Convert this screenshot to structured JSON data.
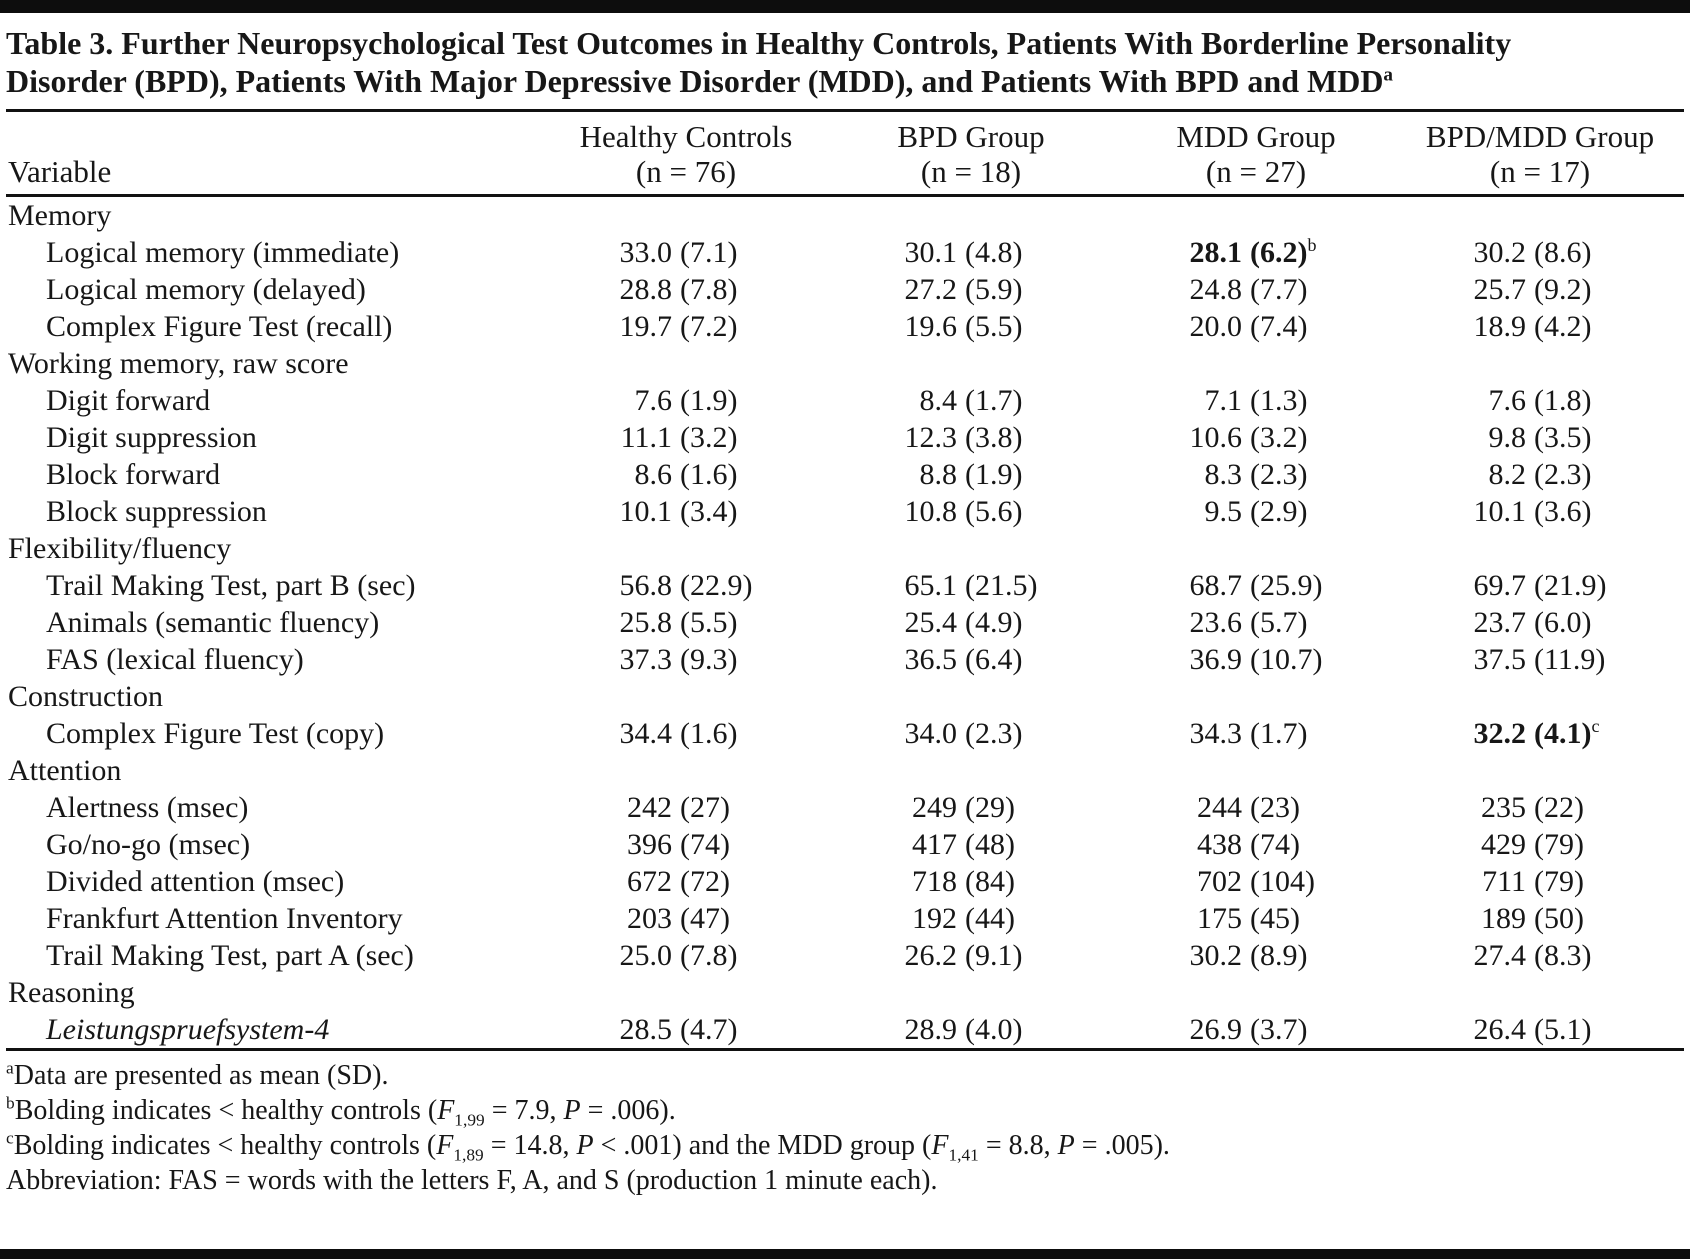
{
  "title": {
    "text": "Table 3. Further Neuropsychological Test Outcomes in Healthy Controls, Patients With Borderline Personality Disorder (BPD), Patients With Major Depressive Disorder (MDD), and Patients With BPD and MDD",
    "marker": "a"
  },
  "colors": {
    "text": "#171717",
    "rule": "#0d0d0d",
    "background": "#ffffff"
  },
  "table": {
    "variable_header": "Variable",
    "columns": [
      {
        "label": "Healthy Controls",
        "n": "(n = 76)"
      },
      {
        "label": "BPD Group",
        "n": "(n = 18)"
      },
      {
        "label": "MDD Group",
        "n": "(n = 27)"
      },
      {
        "label": "BPD/MDD Group",
        "n": "(n = 17)"
      }
    ],
    "rows": [
      {
        "type": "category",
        "label": "Memory"
      },
      {
        "type": "item",
        "label": "Logical memory (immediate)",
        "values": [
          {
            "mean": "33.0",
            "sd": "(7.1)"
          },
          {
            "mean": "30.1",
            "sd": "(4.8)"
          },
          {
            "mean": "28.1",
            "sd": "(6.2)",
            "bold": true,
            "sup": "b"
          },
          {
            "mean": "30.2",
            "sd": "(8.6)"
          }
        ]
      },
      {
        "type": "item",
        "label": "Logical memory (delayed)",
        "values": [
          {
            "mean": "28.8",
            "sd": "(7.8)"
          },
          {
            "mean": "27.2",
            "sd": "(5.9)"
          },
          {
            "mean": "24.8",
            "sd": "(7.7)"
          },
          {
            "mean": "25.7",
            "sd": "(9.2)"
          }
        ]
      },
      {
        "type": "item",
        "label": "Complex Figure Test (recall)",
        "values": [
          {
            "mean": "19.7",
            "sd": "(7.2)"
          },
          {
            "mean": "19.6",
            "sd": "(5.5)"
          },
          {
            "mean": "20.0",
            "sd": "(7.4)"
          },
          {
            "mean": "18.9",
            "sd": "(4.2)"
          }
        ]
      },
      {
        "type": "category",
        "label": "Working memory, raw score"
      },
      {
        "type": "item",
        "label": "Digit forward",
        "values": [
          {
            "mean": "7.6",
            "sd": "(1.9)"
          },
          {
            "mean": "8.4",
            "sd": "(1.7)"
          },
          {
            "mean": "7.1",
            "sd": "(1.3)"
          },
          {
            "mean": "7.6",
            "sd": "(1.8)"
          }
        ]
      },
      {
        "type": "item",
        "label": "Digit suppression",
        "values": [
          {
            "mean": "11.1",
            "sd": "(3.2)"
          },
          {
            "mean": "12.3",
            "sd": "(3.8)"
          },
          {
            "mean": "10.6",
            "sd": "(3.2)"
          },
          {
            "mean": "9.8",
            "sd": "(3.5)"
          }
        ]
      },
      {
        "type": "item",
        "label": "Block forward",
        "values": [
          {
            "mean": "8.6",
            "sd": "(1.6)"
          },
          {
            "mean": "8.8",
            "sd": "(1.9)"
          },
          {
            "mean": "8.3",
            "sd": "(2.3)"
          },
          {
            "mean": "8.2",
            "sd": "(2.3)"
          }
        ]
      },
      {
        "type": "item",
        "label": "Block suppression",
        "values": [
          {
            "mean": "10.1",
            "sd": "(3.4)"
          },
          {
            "mean": "10.8",
            "sd": "(5.6)"
          },
          {
            "mean": "9.5",
            "sd": "(2.9)"
          },
          {
            "mean": "10.1",
            "sd": "(3.6)"
          }
        ]
      },
      {
        "type": "category",
        "label": "Flexibility/fluency"
      },
      {
        "type": "item",
        "label": "Trail Making Test, part B (sec)",
        "values": [
          {
            "mean": "56.8",
            "sd": "(22.9)"
          },
          {
            "mean": "65.1",
            "sd": "(21.5)"
          },
          {
            "mean": "68.7",
            "sd": "(25.9)"
          },
          {
            "mean": "69.7",
            "sd": "(21.9)"
          }
        ]
      },
      {
        "type": "item",
        "label": "Animals (semantic fluency)",
        "values": [
          {
            "mean": "25.8",
            "sd": "(5.5)"
          },
          {
            "mean": "25.4",
            "sd": "(4.9)"
          },
          {
            "mean": "23.6",
            "sd": "(5.7)"
          },
          {
            "mean": "23.7",
            "sd": "(6.0)"
          }
        ]
      },
      {
        "type": "item",
        "label": "FAS (lexical fluency)",
        "values": [
          {
            "mean": "37.3",
            "sd": "(9.3)"
          },
          {
            "mean": "36.5",
            "sd": "(6.4)"
          },
          {
            "mean": "36.9",
            "sd": "(10.7)"
          },
          {
            "mean": "37.5",
            "sd": "(11.9)"
          }
        ]
      },
      {
        "type": "category",
        "label": "Construction"
      },
      {
        "type": "item",
        "label": "Complex Figure Test (copy)",
        "values": [
          {
            "mean": "34.4",
            "sd": "(1.6)"
          },
          {
            "mean": "34.0",
            "sd": "(2.3)"
          },
          {
            "mean": "34.3",
            "sd": "(1.7)"
          },
          {
            "mean": "32.2",
            "sd": "(4.1)",
            "bold": true,
            "sup": "c"
          }
        ]
      },
      {
        "type": "category",
        "label": "Attention"
      },
      {
        "type": "item",
        "label": "Alertness (msec)",
        "values": [
          {
            "mean": "242",
            "sd": "(27)"
          },
          {
            "mean": "249",
            "sd": "(29)"
          },
          {
            "mean": "244",
            "sd": "(23)"
          },
          {
            "mean": "235",
            "sd": "(22)"
          }
        ]
      },
      {
        "type": "item",
        "label": "Go/no-go (msec)",
        "values": [
          {
            "mean": "396",
            "sd": "(74)"
          },
          {
            "mean": "417",
            "sd": "(48)"
          },
          {
            "mean": "438",
            "sd": "(74)"
          },
          {
            "mean": "429",
            "sd": "(79)"
          }
        ]
      },
      {
        "type": "item",
        "label": "Divided attention (msec)",
        "values": [
          {
            "mean": "672",
            "sd": "(72)"
          },
          {
            "mean": "718",
            "sd": "(84)"
          },
          {
            "mean": "702",
            "sd": "(104)"
          },
          {
            "mean": "711",
            "sd": "(79)"
          }
        ]
      },
      {
        "type": "item",
        "label": "Frankfurt Attention Inventory",
        "values": [
          {
            "mean": "203",
            "sd": "(47)"
          },
          {
            "mean": "192",
            "sd": "(44)"
          },
          {
            "mean": "175",
            "sd": "(45)"
          },
          {
            "mean": "189",
            "sd": "(50)"
          }
        ]
      },
      {
        "type": "item",
        "label": "Trail Making Test, part A (sec)",
        "values": [
          {
            "mean": "25.0",
            "sd": "(7.8)"
          },
          {
            "mean": "26.2",
            "sd": "(9.1)"
          },
          {
            "mean": "30.2",
            "sd": "(8.9)"
          },
          {
            "mean": "27.4",
            "sd": "(8.3)"
          }
        ]
      },
      {
        "type": "category",
        "label": "Reasoning"
      },
      {
        "type": "item",
        "label": "Leistungspruefsystem-4",
        "italic": true,
        "values": [
          {
            "mean": "28.5",
            "sd": "(4.7)"
          },
          {
            "mean": "28.9",
            "sd": "(4.0)"
          },
          {
            "mean": "26.9",
            "sd": "(3.7)"
          },
          {
            "mean": "26.4",
            "sd": "(5.1)"
          }
        ]
      }
    ]
  },
  "footnotes": [
    [
      {
        "sup": "a"
      },
      {
        "text": "Data are presented as mean (SD)."
      }
    ],
    [
      {
        "sup": "b"
      },
      {
        "text": "Bolding indicates < healthy controls ("
      },
      {
        "italic": "F"
      },
      {
        "sub": "1,99"
      },
      {
        "text": " = 7.9, "
      },
      {
        "italic": "P"
      },
      {
        "text": " = .006)."
      }
    ],
    [
      {
        "sup": "c"
      },
      {
        "text": "Bolding indicates < healthy controls ("
      },
      {
        "italic": "F"
      },
      {
        "sub": "1,89"
      },
      {
        "text": " = 14.8, "
      },
      {
        "italic": "P"
      },
      {
        "text": " < .001) and the MDD group ("
      },
      {
        "italic": "F"
      },
      {
        "sub": "1,41"
      },
      {
        "text": " = 8.8, "
      },
      {
        "italic": "P"
      },
      {
        "text": " = .005)."
      }
    ],
    [
      {
        "text": "Abbreviation: FAS = words with the letters F, A, and S (production 1 minute each)."
      }
    ]
  ]
}
